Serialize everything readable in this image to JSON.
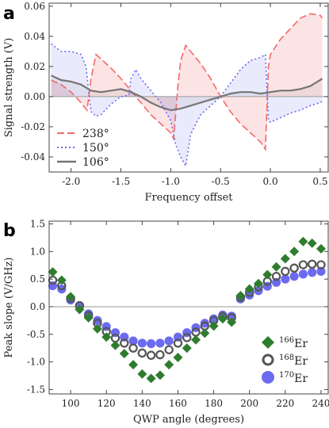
{
  "panels": {
    "a": "a",
    "b": "b"
  },
  "chart_data": [
    {
      "type": "line",
      "xlabel": "Frequency offset",
      "ylabel": "Signal strength (V)",
      "xlim": [
        -2.22,
        0.58
      ],
      "ylim": [
        -0.05,
        0.062
      ],
      "xticks": [
        "-2.0",
        "-1.5",
        "-1.0",
        "-0.5",
        "0.0",
        "0.5"
      ],
      "xtick_values": [
        -2.0,
        -1.5,
        -1.0,
        -0.5,
        0.0,
        0.5
      ],
      "yticks": [
        "-0.04",
        "-0.02",
        "0.00",
        "0.02",
        "0.04",
        "0.06"
      ],
      "ytick_values": [
        -0.04,
        -0.02,
        0.0,
        0.02,
        0.04,
        0.06
      ],
      "legend_position": "bottom-left",
      "series": [
        {
          "name": "238°",
          "color": "#f26b6b",
          "style": "dashed",
          "points": [
            [
              -2.2,
              0.011
            ],
            [
              -2.1,
              0.008
            ],
            [
              -2.0,
              0.003
            ],
            [
              -1.9,
              -0.004
            ],
            [
              -1.84,
              -0.009
            ],
            [
              -1.8,
              0.012
            ],
            [
              -1.75,
              0.028
            ],
            [
              -1.7,
              0.025
            ],
            [
              -1.6,
              0.019
            ],
            [
              -1.5,
              0.012
            ],
            [
              -1.4,
              0.004
            ],
            [
              -1.3,
              -0.004
            ],
            [
              -1.2,
              -0.012
            ],
            [
              -1.1,
              -0.018
            ],
            [
              -1.0,
              -0.024
            ],
            [
              -0.97,
              -0.028
            ],
            [
              -0.93,
              0.006
            ],
            [
              -0.9,
              0.024
            ],
            [
              -0.85,
              0.034
            ],
            [
              -0.8,
              0.03
            ],
            [
              -0.7,
              0.022
            ],
            [
              -0.6,
              0.012
            ],
            [
              -0.5,
              0.0
            ],
            [
              -0.4,
              -0.01
            ],
            [
              -0.3,
              -0.018
            ],
            [
              -0.2,
              -0.024
            ],
            [
              -0.1,
              -0.03
            ],
            [
              -0.05,
              -0.035
            ],
            [
              -0.02,
              0.02
            ],
            [
              0.0,
              0.028
            ],
            [
              0.05,
              0.033
            ],
            [
              0.1,
              0.038
            ],
            [
              0.2,
              0.045
            ],
            [
              0.3,
              0.052
            ],
            [
              0.4,
              0.055
            ],
            [
              0.5,
              0.054
            ],
            [
              0.52,
              0.052
            ]
          ]
        },
        {
          "name": "150°",
          "color": "#6b6bf2",
          "style": "dotted",
          "points": [
            [
              -2.2,
              0.035
            ],
            [
              -2.1,
              0.03
            ],
            [
              -2.0,
              0.03
            ],
            [
              -1.9,
              0.028
            ],
            [
              -1.85,
              0.02
            ],
            [
              -1.8,
              -0.01
            ],
            [
              -1.75,
              -0.013
            ],
            [
              -1.7,
              -0.012
            ],
            [
              -1.6,
              -0.005
            ],
            [
              -1.5,
              0.0
            ],
            [
              -1.42,
              0.001
            ],
            [
              -1.4,
              0.012
            ],
            [
              -1.35,
              0.018
            ],
            [
              -1.3,
              0.012
            ],
            [
              -1.2,
              0.004
            ],
            [
              -1.1,
              -0.004
            ],
            [
              -1.0,
              -0.016
            ],
            [
              -0.95,
              -0.032
            ],
            [
              -0.9,
              -0.04
            ],
            [
              -0.85,
              -0.046
            ],
            [
              -0.8,
              -0.025
            ],
            [
              -0.7,
              -0.012
            ],
            [
              -0.6,
              -0.006
            ],
            [
              -0.5,
              0.0
            ],
            [
              -0.4,
              0.009
            ],
            [
              -0.3,
              0.018
            ],
            [
              -0.2,
              0.024
            ],
            [
              -0.1,
              0.026
            ],
            [
              -0.05,
              0.028
            ],
            [
              -0.02,
              -0.016
            ],
            [
              0.0,
              -0.017
            ],
            [
              0.1,
              -0.014
            ],
            [
              0.2,
              -0.011
            ],
            [
              0.3,
              -0.009
            ],
            [
              0.4,
              -0.006
            ],
            [
              0.5,
              -0.004
            ],
            [
              0.52,
              -0.003
            ]
          ]
        },
        {
          "name": "106°",
          "color": "#757575",
          "style": "solid",
          "points": [
            [
              -2.2,
              0.014
            ],
            [
              -2.1,
              0.011
            ],
            [
              -2.0,
              0.01
            ],
            [
              -1.9,
              0.008
            ],
            [
              -1.8,
              0.004
            ],
            [
              -1.7,
              0.003
            ],
            [
              -1.6,
              0.004
            ],
            [
              -1.5,
              0.005
            ],
            [
              -1.4,
              0.003
            ],
            [
              -1.3,
              0.0
            ],
            [
              -1.2,
              -0.004
            ],
            [
              -1.1,
              -0.007
            ],
            [
              -1.0,
              -0.009
            ],
            [
              -0.9,
              -0.008
            ],
            [
              -0.8,
              -0.006
            ],
            [
              -0.7,
              -0.004
            ],
            [
              -0.6,
              -0.002
            ],
            [
              -0.5,
              0.0
            ],
            [
              -0.4,
              0.002
            ],
            [
              -0.3,
              0.003
            ],
            [
              -0.2,
              0.003
            ],
            [
              -0.1,
              0.002
            ],
            [
              0.0,
              0.003
            ],
            [
              0.1,
              0.004
            ],
            [
              0.2,
              0.004
            ],
            [
              0.3,
              0.005
            ],
            [
              0.4,
              0.007
            ],
            [
              0.5,
              0.011
            ],
            [
              0.52,
              0.012
            ]
          ]
        }
      ]
    },
    {
      "type": "scatter",
      "xlabel": "QWP angle (degrees)",
      "ylabel": "Peak slope (V/GHz)",
      "xlim": [
        88,
        244
      ],
      "ylim": [
        -1.58,
        1.55
      ],
      "xticks": [
        "100",
        "120",
        "140",
        "160",
        "180",
        "200",
        "220",
        "240"
      ],
      "xtick_values": [
        100,
        120,
        140,
        160,
        180,
        200,
        220,
        240
      ],
      "yticks": [
        "-1.5",
        "-1.0",
        "-0.5",
        "0.0",
        "0.5",
        "1.0",
        "1.5"
      ],
      "ytick_values": [
        -1.5,
        -1.0,
        -0.5,
        0.0,
        0.5,
        1.0,
        1.5
      ],
      "legend_position": "bottom-right",
      "x": [
        90,
        95,
        100,
        105,
        110,
        115,
        120,
        125,
        130,
        135,
        140,
        145,
        150,
        155,
        160,
        165,
        170,
        175,
        180,
        185,
        190,
        195,
        200,
        205,
        210,
        215,
        220,
        225,
        230,
        235,
        240
      ],
      "series": [
        {
          "name": "Er",
          "mass_number": "166",
          "color": "#2e7d2e",
          "marker": "diamond",
          "values": [
            0.63,
            0.48,
            0.18,
            -0.05,
            -0.2,
            -0.4,
            -0.55,
            -0.7,
            -0.85,
            -1.05,
            -1.22,
            -1.3,
            -1.24,
            -1.05,
            -0.92,
            -0.75,
            -0.6,
            -0.48,
            -0.35,
            -0.22,
            -0.28,
            0.2,
            0.32,
            0.42,
            0.58,
            0.72,
            0.87,
            1.0,
            1.18,
            1.15,
            1.05
          ]
        },
        {
          "name": "Er",
          "mass_number": "168",
          "color": "#555555",
          "marker": "open-circle",
          "values": [
            0.48,
            0.38,
            0.15,
            0.02,
            -0.16,
            -0.3,
            -0.45,
            -0.57,
            -0.66,
            -0.75,
            -0.84,
            -0.88,
            -0.87,
            -0.78,
            -0.66,
            -0.56,
            -0.46,
            -0.35,
            -0.25,
            -0.18,
            -0.2,
            0.17,
            0.26,
            0.36,
            0.46,
            0.55,
            0.64,
            0.7,
            0.76,
            0.77,
            0.76
          ]
        },
        {
          "name": "Er",
          "mass_number": "170",
          "color": "#6b6bf0",
          "marker": "filled-circle",
          "values": [
            0.38,
            0.32,
            0.12,
            0.01,
            -0.13,
            -0.25,
            -0.36,
            -0.47,
            -0.55,
            -0.62,
            -0.66,
            -0.67,
            -0.66,
            -0.62,
            -0.55,
            -0.47,
            -0.38,
            -0.3,
            -0.22,
            -0.15,
            -0.17,
            0.14,
            0.21,
            0.29,
            0.37,
            0.44,
            0.5,
            0.55,
            0.59,
            0.62,
            0.64
          ]
        }
      ]
    }
  ]
}
